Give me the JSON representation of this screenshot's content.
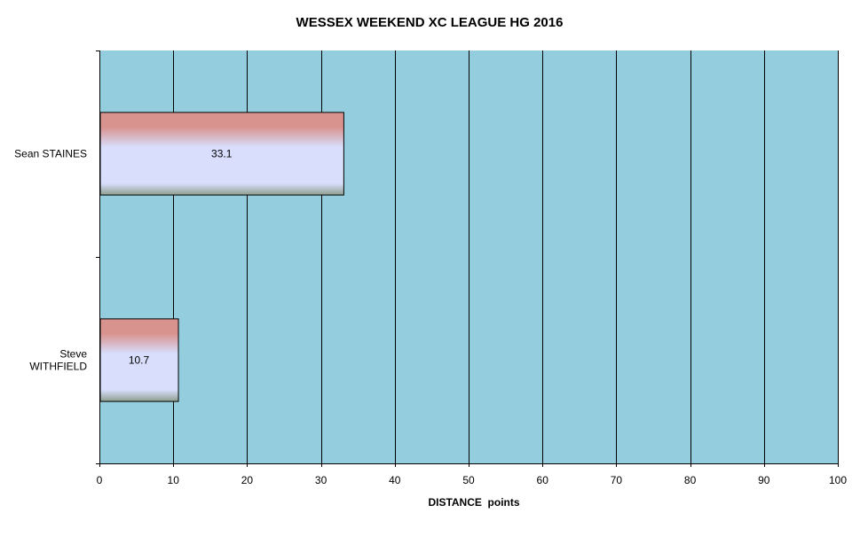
{
  "chart_data": {
    "type": "bar",
    "orientation": "horizontal",
    "title": "WESSEX WEEKEND XC LEAGUE HG 2016",
    "xlabel": "DISTANCE  points",
    "ylabel": "",
    "categories": [
      [
        "Sean STAINES"
      ],
      [
        "Steve",
        "WITHFIELD"
      ]
    ],
    "values": [
      33.1,
      10.7
    ],
    "data_labels": [
      "33.1",
      "10.7"
    ],
    "xlim": [
      0,
      100
    ],
    "xticks": [
      0,
      10,
      20,
      30,
      40,
      50,
      60,
      70,
      80,
      90,
      100
    ],
    "grid": "vertical",
    "legend": "none",
    "colors": {
      "plot_background": "#94CDDD",
      "bar_top": "#D9938F",
      "bar_middle": "#D8DEFC",
      "bar_bottom": "#8E9E8E",
      "gridline": "#000000"
    }
  }
}
